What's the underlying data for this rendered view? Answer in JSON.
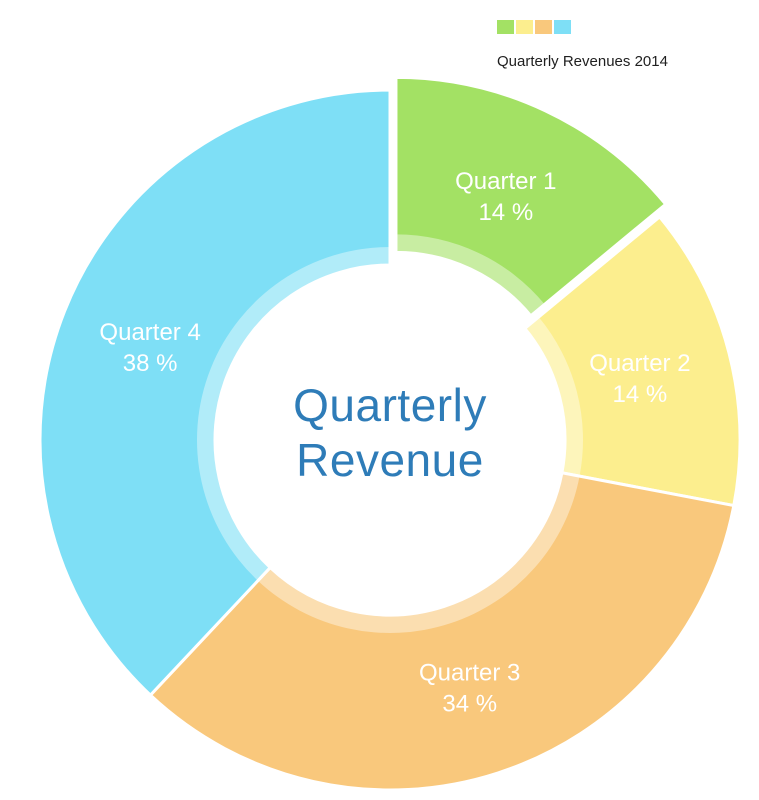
{
  "chart_data": {
    "type": "pie",
    "subtype": "donut",
    "title": "Quarterly Revenues 2014",
    "center_title": [
      "Quarterly",
      "Revenue"
    ],
    "categories": [
      "Quarter 1",
      "Quarter 2",
      "Quarter 3",
      "Quarter 4"
    ],
    "values": [
      14,
      14,
      34,
      38
    ],
    "unit": "%",
    "colors": [
      "#a3e164",
      "#fcee8e",
      "#f9c87c",
      "#7edff6"
    ],
    "exploded_slice_index": 0,
    "label_color": "#ffffff",
    "center_text_color": "#2e7cb8",
    "legend_position": "top-right",
    "legend_on": true,
    "grid": false
  }
}
